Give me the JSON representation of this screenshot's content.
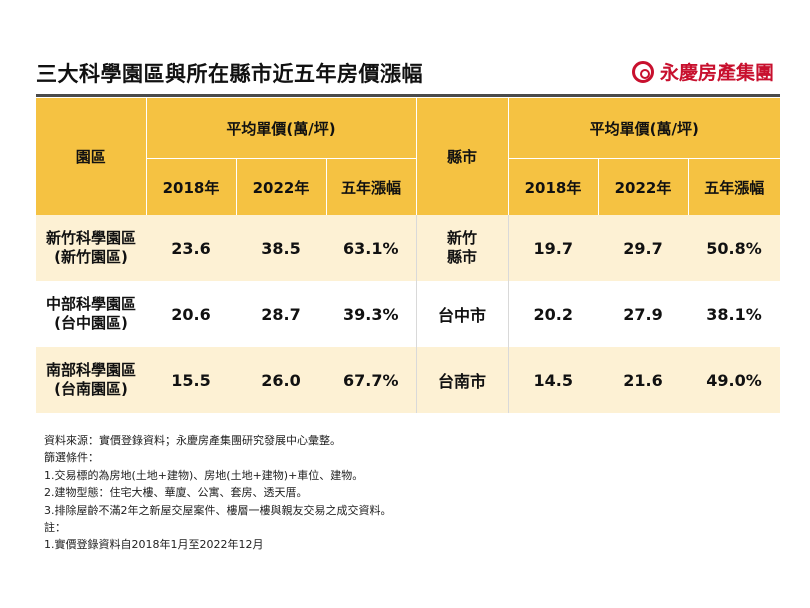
{
  "title": "三大科學園區與所在縣市近五年房價漲幅",
  "brand": "永慶房產集團",
  "table": {
    "park_header": "園區",
    "city_header": "縣市",
    "group_header_left": "平均單價(萬/坪)",
    "group_header_right": "平均單價(萬/坪)",
    "sub_headers": [
      "2018年",
      "2022年",
      "五年漲幅"
    ],
    "rows": [
      {
        "park_line1": "新竹科學園區",
        "park_line2": "(新竹園區)",
        "park_2018": "23.6",
        "park_2022": "38.5",
        "park_growth": "63.1%",
        "city_line1": "新竹",
        "city_line2": "縣市",
        "city_2018": "19.7",
        "city_2022": "29.7",
        "city_growth": "50.8%"
      },
      {
        "park_line1": "中部科學園區",
        "park_line2": "(台中園區)",
        "park_2018": "20.6",
        "park_2022": "28.7",
        "park_growth": "39.3%",
        "city_line1": "台中市",
        "city_line2": "",
        "city_2018": "20.2",
        "city_2022": "27.9",
        "city_growth": "38.1%"
      },
      {
        "park_line1": "南部科學園區",
        "park_line2": "(台南園區)",
        "park_2018": "15.5",
        "park_2022": "26.0",
        "park_growth": "67.7%",
        "city_line1": "台南市",
        "city_line2": "",
        "city_2018": "14.5",
        "city_2022": "21.6",
        "city_growth": "49.0%"
      }
    ]
  },
  "notes": [
    "資料來源：實價登錄資料；永慶房產集團研究發展中心彙整。",
    "篩選條件：",
    "1.交易標的為房地(土地+建物)、房地(土地+建物)+車位、建物。",
    "2.建物型態：住宅大樓、華廈、公寓、套房、透天厝。",
    "3.排除屋齡不滿2年之新屋交屋案件、樓層一樓與親友交易之成交資料。",
    "註：",
    "1.實價登錄資料自2018年1月至2022年12月"
  ],
  "colors": {
    "header": "#f5c242",
    "tint_row": "#fdf1d4",
    "brand": "#c8102e"
  }
}
